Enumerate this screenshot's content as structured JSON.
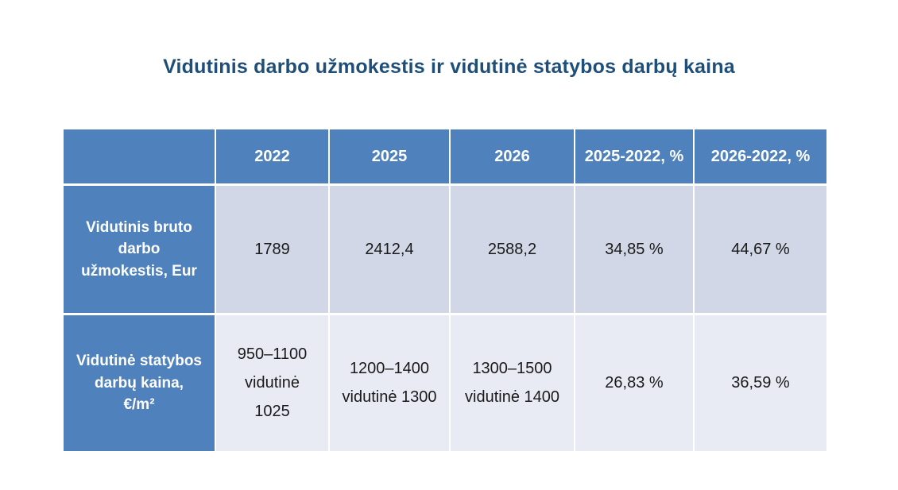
{
  "title": {
    "text": "Vidutinis darbo užmokestis ir vidutinė statybos darbų kaina",
    "color": "#1F4E79"
  },
  "colors": {
    "header_bg": "#4F81BD",
    "row_band_dark": "#D1D7E6",
    "row_band_light": "#E9EBF4",
    "grid_line": "#FFFFFF",
    "header_text": "#FFFFFF",
    "body_text": "#1A1A1A"
  },
  "table": {
    "header": [
      "",
      "2022",
      "2025",
      "2026",
      "2025-2022, %",
      "2026-2022, %"
    ],
    "rows": [
      {
        "label_lines": [
          "Vidutinis bruto",
          "darbo",
          "užmokestis, Eur"
        ],
        "cells": [
          [
            "1789"
          ],
          [
            "2412,4"
          ],
          [
            "2588,2"
          ],
          [
            "34,85 %"
          ],
          [
            "44,67 %"
          ]
        ]
      },
      {
        "label_lines": [
          "Vidutinė statybos",
          "darbų kaina,",
          "€/m²"
        ],
        "cells": [
          [
            "950–1100",
            "vidutinė",
            "1025"
          ],
          [
            "1200–1400",
            "vidutinė 1300"
          ],
          [
            "1300–1500",
            "vidutinė 1400"
          ],
          [
            "26,83 %"
          ],
          [
            "36,59 %"
          ]
        ]
      }
    ]
  }
}
